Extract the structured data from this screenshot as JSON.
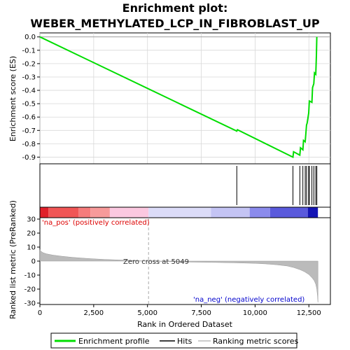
{
  "chart_data": {
    "type": "line",
    "title": "Enrichment plot: WEBER_METHYLATED_LCP_IN_FIBROBLAST_UP",
    "title_lines": [
      "Enrichment plot:",
      "WEBER_METHYLATED_LCP_IN_FIBROBLAST_UP"
    ],
    "xlabel": "Rank in Ordered Dataset",
    "xlim": [
      0,
      13500
    ],
    "xticks": [
      0,
      2500,
      5000,
      7500,
      10000,
      12500
    ],
    "xtick_labels": [
      "0",
      "2,500",
      "5,000",
      "7,500",
      "10,000",
      "12,500"
    ],
    "es_panel": {
      "ylabel": "Enrichment score (ES)",
      "ylim": [
        -0.95,
        0.03
      ],
      "yticks": [
        0.0,
        -0.1,
        -0.2,
        -0.3,
        -0.4,
        -0.5,
        -0.6,
        -0.7,
        -0.8,
        -0.9
      ],
      "ytick_labels": [
        "0.0",
        "-0.1",
        "-0.2",
        "-0.3",
        "-0.4",
        "-0.5",
        "-0.6",
        "-0.7",
        "-0.8",
        "-0.9"
      ],
      "series": [
        {
          "name": "Enrichment profile",
          "color": "#00dd00",
          "x": [
            0,
            9150,
            9180,
            11760,
            11790,
            12080,
            12110,
            12220,
            12250,
            12330,
            12360,
            12390,
            12420,
            12490,
            12520,
            12640,
            12670,
            12730,
            12760,
            12820,
            12850,
            12870
          ],
          "y": [
            0.0,
            -0.705,
            -0.695,
            -0.9,
            -0.86,
            -0.885,
            -0.83,
            -0.845,
            -0.775,
            -0.785,
            -0.72,
            -0.66,
            -0.645,
            -0.57,
            -0.48,
            -0.49,
            -0.38,
            -0.35,
            -0.27,
            -0.28,
            -0.14,
            0.0
          ]
        }
      ]
    },
    "hits": [
      9150,
      11760,
      12080,
      12220,
      12330,
      12390,
      12490,
      12520,
      12640,
      12730,
      12820,
      12870
    ],
    "heat_bar": {
      "segments": [
        {
          "x0": 0,
          "x1": 400,
          "color": "#e0202a"
        },
        {
          "x0": 400,
          "x1": 1800,
          "color": "#f05656"
        },
        {
          "x0": 1800,
          "x1": 2350,
          "color": "#f57b7b"
        },
        {
          "x0": 2350,
          "x1": 3250,
          "color": "#f79a9a"
        },
        {
          "x0": 3250,
          "x1": 5049,
          "color": "#fbc8e0"
        },
        {
          "x0": 5049,
          "x1": 7950,
          "color": "#dcdcf8"
        },
        {
          "x0": 7950,
          "x1": 9750,
          "color": "#c4c4f4"
        },
        {
          "x0": 9750,
          "x1": 10700,
          "color": "#8b8bec"
        },
        {
          "x0": 10700,
          "x1": 12450,
          "color": "#5a5adc"
        },
        {
          "x0": 12450,
          "x1": 12920,
          "color": "#1414b4"
        }
      ]
    },
    "metric_panel": {
      "ylabel": "Ranked list metric (PreRanked)",
      "ylim": [
        -31,
        31
      ],
      "yticks": [
        30,
        20,
        10,
        0,
        -10,
        -20,
        -30
      ],
      "ytick_labels": [
        "30",
        "20",
        "10",
        "0",
        "-10",
        "-20",
        "-30"
      ],
      "series": [
        {
          "name": "Ranking metric scores",
          "color": "#bbbbbb",
          "x": [
            0,
            50,
            150,
            300,
            600,
            1000,
            1500,
            2000,
            2500,
            3000,
            4000,
            5049,
            6000,
            7000,
            8000,
            9000,
            10000,
            10500,
            11000,
            11500,
            11800,
            12100,
            12300,
            12500,
            12650,
            12750,
            12820,
            12870,
            12900,
            12920
          ],
          "y": [
            8.2,
            7.0,
            6.0,
            5.2,
            4.3,
            3.5,
            2.7,
            2.1,
            1.6,
            1.2,
            0.6,
            0.0,
            -0.4,
            -0.7,
            -0.9,
            -1.2,
            -1.6,
            -2.0,
            -2.6,
            -3.5,
            -4.6,
            -6.2,
            -7.6,
            -9.6,
            -12.0,
            -14.0,
            -16.5,
            -20.0,
            -25.0,
            -29.5
          ]
        }
      ],
      "zero_cross": 5049,
      "annotations": {
        "pos_label": "'na_pos' (positively correlated)",
        "neg_label": "'na_neg' (negatively correlated)",
        "zero_cross_label": "Zero cross at 5049"
      }
    },
    "legend": {
      "placement": "bottom",
      "entries": [
        {
          "label": "Enrichment profile",
          "color": "#00dd00"
        },
        {
          "label": "Hits",
          "color": "#000000"
        },
        {
          "label": "Ranking metric scores",
          "color": "#bbbbbb"
        }
      ]
    },
    "colors": {
      "pos_label": "#dd0000",
      "neg_label": "#0000cc",
      "zero_cross_label": "#333333",
      "zero_line": "#aaaaaa",
      "frame": "#000000",
      "background": "#ffffff"
    }
  }
}
